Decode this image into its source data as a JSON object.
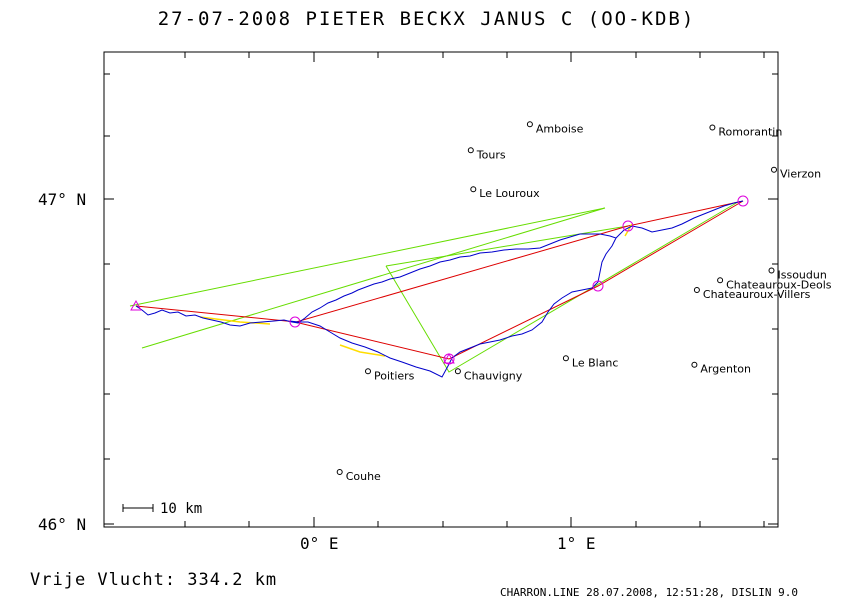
{
  "title": "27-07-2008    PIETER BECKX    JANUS C (OO-KDB)",
  "axes": {
    "x_ticks": [
      {
        "label": "0° E",
        "lon": 0
      },
      {
        "label": "1° E",
        "lon": 1
      }
    ],
    "y_ticks": [
      {
        "label": "47° N",
        "lat": 47
      },
      {
        "label": "46° N",
        "lat": 46
      }
    ],
    "lon_range": [
      -0.83,
      1.8
    ],
    "lat_range": [
      46.0,
      47.45
    ]
  },
  "scale_bar": {
    "label": "10 km"
  },
  "towns": [
    {
      "name": "Amboise",
      "lon": 0.84,
      "lat": 47.23
    },
    {
      "name": "Romorantin",
      "lon": 1.55,
      "lat": 47.22
    },
    {
      "name": "Tours",
      "lon": 0.61,
      "lat": 47.15
    },
    {
      "name": "Vierzon",
      "lon": 1.79,
      "lat": 47.09
    },
    {
      "name": "Le Louroux",
      "lon": 0.62,
      "lat": 47.03
    },
    {
      "name": "Issoudun",
      "lon": 1.78,
      "lat": 46.78
    },
    {
      "name": "Chateauroux-Deols",
      "lon": 1.58,
      "lat": 46.75
    },
    {
      "name": "Chateauroux-Villers",
      "lon": 1.49,
      "lat": 46.72
    },
    {
      "name": "Le Blanc",
      "lon": 0.98,
      "lat": 46.51
    },
    {
      "name": "Argenton",
      "lon": 1.48,
      "lat": 46.49
    },
    {
      "name": "Poitiers",
      "lon": 0.21,
      "lat": 46.47
    },
    {
      "name": "Chauvigny",
      "lon": 0.56,
      "lat": 46.47
    },
    {
      "name": "Couhe",
      "lon": 0.1,
      "lat": 46.16
    }
  ],
  "flight_distance": "Vrije Vlucht:  334.2 km",
  "footer": "CHARRON.LINE 28.07.2008, 12:51:28, DISLIN 9.0",
  "colors": {
    "track": "#0000cc",
    "task": "#dd0000",
    "sector": "#66dd00",
    "turnpoint": "#dd00dd",
    "glide": "#ffdd00"
  }
}
